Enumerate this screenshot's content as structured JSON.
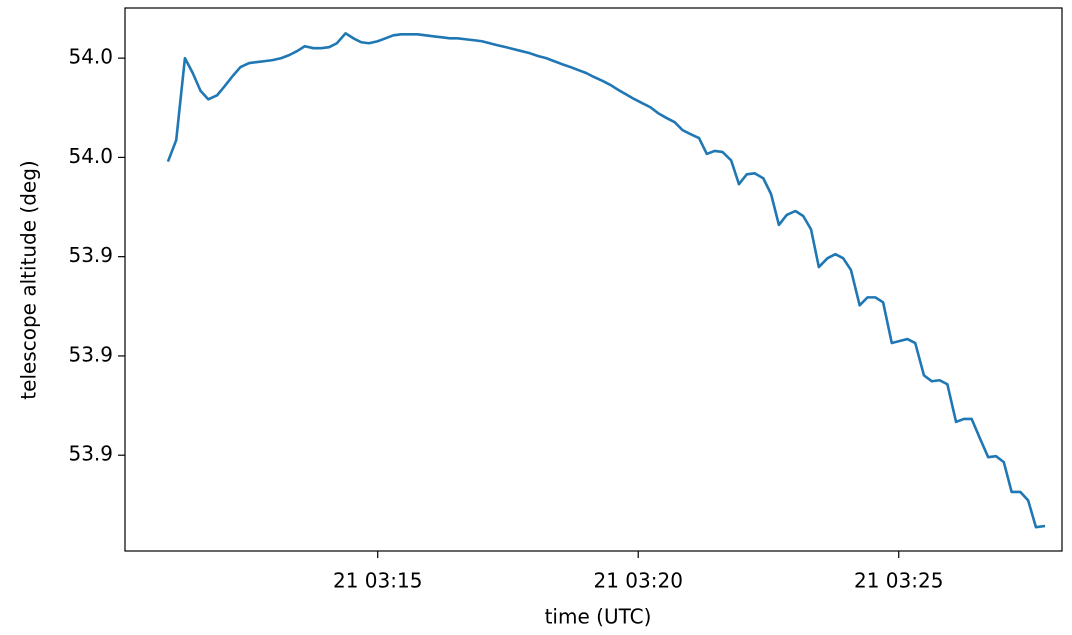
{
  "chart_data": {
    "type": "line",
    "xlabel": "time (UTC)",
    "ylabel": "telescope altitude (deg)",
    "color": "#1f77b4",
    "x": [
      "03:10:59",
      "03:11:08",
      "03:11:18",
      "03:11:27",
      "03:11:36",
      "03:11:45",
      "03:11:55",
      "03:12:04",
      "03:12:13",
      "03:12:22",
      "03:12:32",
      "03:12:41",
      "03:12:50",
      "03:12:59",
      "03:13:09",
      "03:13:18",
      "03:13:27",
      "03:13:36",
      "03:13:46",
      "03:13:55",
      "03:14:04",
      "03:14:13",
      "03:14:23",
      "03:14:32",
      "03:14:41",
      "03:14:50",
      "03:15:00",
      "03:15:09",
      "03:15:18",
      "03:15:27",
      "03:15:37",
      "03:15:46",
      "03:15:55",
      "03:16:04",
      "03:16:14",
      "03:16:23",
      "03:16:32",
      "03:16:41",
      "03:16:51",
      "03:17:00",
      "03:17:09",
      "03:17:18",
      "03:17:28",
      "03:17:37",
      "03:17:46",
      "03:17:55",
      "03:18:05",
      "03:18:14",
      "03:18:23",
      "03:18:32",
      "03:18:42",
      "03:18:51",
      "03:19:00",
      "03:19:09",
      "03:19:19",
      "03:19:28",
      "03:19:37",
      "03:19:46",
      "03:19:56",
      "03:20:05",
      "03:20:14",
      "03:20:23",
      "03:20:33",
      "03:20:42",
      "03:20:51",
      "03:21:00",
      "03:21:10",
      "03:21:19",
      "03:21:28",
      "03:21:37",
      "03:21:47",
      "03:21:56",
      "03:22:05",
      "03:22:14",
      "03:22:24",
      "03:22:33",
      "03:22:42",
      "03:22:51",
      "03:23:01",
      "03:23:10",
      "03:23:19",
      "03:23:28",
      "03:23:38",
      "03:23:47",
      "03:23:56",
      "03:24:05",
      "03:24:15",
      "03:24:24",
      "03:24:33",
      "03:24:42",
      "03:24:52",
      "03:25:01",
      "03:25:10",
      "03:25:19",
      "03:25:29",
      "03:25:38",
      "03:25:47",
      "03:25:56",
      "03:26:06",
      "03:26:15",
      "03:26:24",
      "03:26:33",
      "03:26:43",
      "03:26:52",
      "03:27:01",
      "03:27:10",
      "03:27:20",
      "03:27:29",
      "03:27:38",
      "03:27:47"
    ],
    "values": [
      53.9594,
      53.9635,
      53.98,
      53.977,
      53.9734,
      53.9717,
      53.9725,
      53.9744,
      53.9764,
      53.9782,
      53.979,
      53.9792,
      53.9794,
      53.9796,
      53.98,
      53.9806,
      53.9814,
      53.9824,
      53.982,
      53.982,
      53.9822,
      53.983,
      53.985,
      53.984,
      53.9832,
      53.983,
      53.9834,
      53.984,
      53.9846,
      53.9848,
      53.9848,
      53.9848,
      53.9846,
      53.9844,
      53.9842,
      53.984,
      53.984,
      53.9838,
      53.9836,
      53.9834,
      53.983,
      53.9826,
      53.9822,
      53.9818,
      53.9814,
      53.981,
      53.9804,
      53.98,
      53.9794,
      53.9788,
      53.9782,
      53.9776,
      53.977,
      53.9762,
      53.9754,
      53.9746,
      53.9736,
      53.9727,
      53.9717,
      53.9709,
      53.9701,
      53.9689,
      53.9679,
      53.9671,
      53.9655,
      53.9647,
      53.9639,
      53.9607,
      53.9613,
      53.9611,
      53.9594,
      53.9546,
      53.9566,
      53.9568,
      53.9558,
      53.9526,
      53.9464,
      53.9484,
      53.9492,
      53.9482,
      53.9455,
      53.9379,
      53.9397,
      53.9405,
      53.9397,
      53.9373,
      53.9302,
      53.9318,
      53.9318,
      53.9308,
      53.9226,
      53.923,
      53.9234,
      53.9226,
      53.9161,
      53.9149,
      53.9151,
      53.9143,
      53.9067,
      53.9073,
      53.9073,
      53.9036,
      53.8996,
      53.8998,
      53.8986,
      53.8926,
      53.8926,
      53.8909,
      53.8855,
      53.8857
    ],
    "xlim": [
      "03:10:09",
      "03:28:08"
    ],
    "xticks": [
      {
        "value": "03:15:00",
        "label": "21 03:15"
      },
      {
        "value": "03:20:00",
        "label": "21 03:20"
      },
      {
        "value": "03:25:00",
        "label": "21 03:25"
      }
    ],
    "ylim": [
      53.8807,
      53.9901
    ],
    "yticks": [
      {
        "value": 53.98,
        "label": "54.0"
      },
      {
        "value": 53.96,
        "label": "54.0"
      },
      {
        "value": 53.94,
        "label": "53.9"
      },
      {
        "value": 53.92,
        "label": "53.9"
      },
      {
        "value": 53.9,
        "label": "53.9"
      }
    ],
    "grid": false
  }
}
